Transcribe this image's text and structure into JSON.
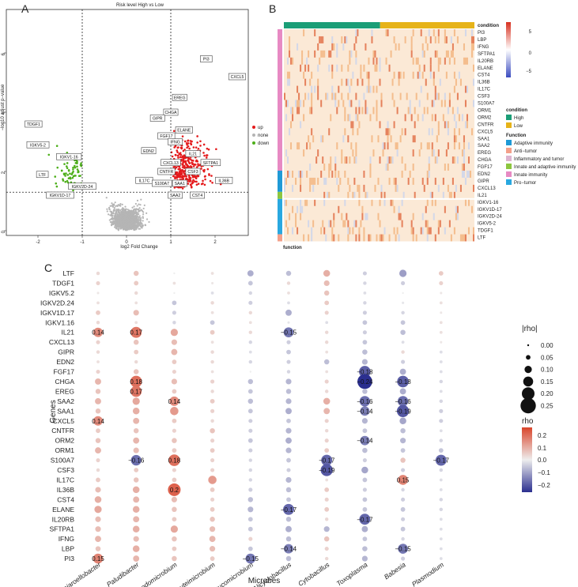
{
  "chart_data": [
    {
      "panel": "A",
      "type": "scatter",
      "title": "Risk level High vs Low",
      "xlabel": "log2 Fold Change",
      "ylabel": "−log10 adjust p−value",
      "xticks": [
        "-2",
        "-1",
        "0",
        "1",
        "2"
      ],
      "yticks": [
        "0",
        "2",
        "4",
        "6"
      ],
      "xlim": [
        -2.7,
        2.8
      ],
      "ylim": [
        0,
        7
      ],
      "fc_threshold": [
        -1,
        1
      ],
      "p_threshold": 1.3,
      "legend": [
        {
          "name": "up",
          "color": "#e41a1c"
        },
        {
          "name": "none",
          "color": "#b5b5b5"
        },
        {
          "name": "down",
          "color": "#4daf1a"
        }
      ],
      "labeled_points": [
        {
          "name": "PI3",
          "x": 1.8,
          "y": 5.8
        },
        {
          "name": "CXCL5",
          "x": 2.5,
          "y": 5.2
        },
        {
          "name": "EREG",
          "x": 1.2,
          "y": 4.5
        },
        {
          "name": "CHGA",
          "x": 1.0,
          "y": 4.0
        },
        {
          "name": "GIPR",
          "x": 0.7,
          "y": 3.8
        },
        {
          "name": "ELANE",
          "x": 1.3,
          "y": 3.4
        },
        {
          "name": "FGF17",
          "x": 0.9,
          "y": 3.2
        },
        {
          "name": "IFNG",
          "x": 1.1,
          "y": 3.0
        },
        {
          "name": "EDN2",
          "x": 0.5,
          "y": 2.7
        },
        {
          "name": "IL21",
          "x": 1.5,
          "y": 2.6
        },
        {
          "name": "CXCL13",
          "x": 1.0,
          "y": 2.3
        },
        {
          "name": "SFTPA1",
          "x": 1.9,
          "y": 2.3
        },
        {
          "name": "CNTFR",
          "x": 0.9,
          "y": 2.0
        },
        {
          "name": "CSF3",
          "x": 1.5,
          "y": 2.0
        },
        {
          "name": "IL17C",
          "x": 0.4,
          "y": 1.7
        },
        {
          "name": "S100A7",
          "x": 0.8,
          "y": 1.6
        },
        {
          "name": "SAA1",
          "x": 1.2,
          "y": 1.6
        },
        {
          "name": "IL36B",
          "x": 2.2,
          "y": 1.7
        },
        {
          "name": "SAA2",
          "x": 1.1,
          "y": 1.2
        },
        {
          "name": "CST4",
          "x": 1.6,
          "y": 1.2
        },
        {
          "name": "TDGF1",
          "x": -2.1,
          "y": 3.6
        },
        {
          "name": "IGKV5-2",
          "x": -2.0,
          "y": 2.9
        },
        {
          "name": "IGKV1-16",
          "x": -1.3,
          "y": 2.5
        },
        {
          "name": "LTF",
          "x": -1.9,
          "y": 1.9
        },
        {
          "name": "IGKV2D-24",
          "x": -1.0,
          "y": 1.5
        },
        {
          "name": "IGKV1D-17",
          "x": -1.5,
          "y": 1.2
        }
      ]
    },
    {
      "panel": "B",
      "type": "heatmap",
      "rows": [
        "condition",
        "PI3",
        "LBP",
        "IFNG",
        "SFTPA1",
        "IL20RB",
        "ELANE",
        "CST4",
        "IL36B",
        "IL17C",
        "CSF3",
        "S100A7",
        "ORM1",
        "ORM2",
        "CNTFR",
        "CXCL5",
        "SAA1",
        "SAA2",
        "EREG",
        "CHGA",
        "FGF17",
        "EDN2",
        "GIPR",
        "CXCL13",
        "IL21",
        "IGKV1-16",
        "IGKV1D-17",
        "IGKV2D-24",
        "IGKV5-2",
        "TDGF1",
        "LTF"
      ],
      "bottom_label": "function",
      "colorbar": {
        "ticks": [
          "5",
          "0",
          "−5"
        ],
        "low": "#3b4cc0",
        "mid": "#ffffff",
        "high": "#d7301f"
      },
      "condition_legend": {
        "title": "condition",
        "items": [
          {
            "name": "High",
            "color": "#1b9e77"
          },
          {
            "name": "Low",
            "color": "#e6b319"
          }
        ]
      },
      "function_legend": {
        "title": "Function",
        "items": [
          {
            "name": "Adaptive immunity",
            "color": "#1f9ad6"
          },
          {
            "name": "Anti−tumor",
            "color": "#f4a08a"
          },
          {
            "name": "Inflammatory and tumor",
            "color": "#ddb3cf"
          },
          {
            "name": "Innate and adaptive immunity",
            "color": "#8dc63f"
          },
          {
            "name": "Innate immunity",
            "color": "#e78ac3"
          },
          {
            "name": "Pro−tumor",
            "color": "#29a8e0"
          }
        ]
      }
    },
    {
      "panel": "C",
      "type": "scatter",
      "xlabel": "Microbes",
      "ylabel": "Genes",
      "microbes": [
        "Pajaroellobacter",
        "Paludibacter",
        "Rhodomicrobium",
        "Luteimicrobium",
        "Verrucomicrobium",
        "Alicyclobacillus",
        "Cytobacillus",
        "Toxoplasma",
        "Babesia",
        "Plasmodium"
      ],
      "genes": [
        "LTF",
        "TDGF1",
        "IGKV5.2",
        "IGKV2D.24",
        "IGKV1D.17",
        "IGKV1.16",
        "IL21",
        "CXCL13",
        "GIPR",
        "EDN2",
        "FGF17",
        "CHGA",
        "EREG",
        "SAA2",
        "SAA1",
        "CXCL5",
        "CNTFR",
        "ORM2",
        "ORM1",
        "S100A7",
        "CSF3",
        "IL17C",
        "IL36B",
        "CST4",
        "ELANE",
        "IL20RB",
        "SFTPA1",
        "IFNG",
        "LBP",
        "PI3"
      ],
      "size_legend": {
        "title": "|rho|",
        "values": [
          "0.00",
          "0.05",
          "0.10",
          "0.15",
          "0.20",
          "0.25"
        ]
      },
      "color_legend": {
        "title": "rho",
        "ticks": [
          "0.2",
          "0.1",
          "0.0",
          "−0.1",
          "−0.2"
        ]
      },
      "rho": [
        [
          0.03,
          0.06,
          0.0,
          0.02,
          -0.08,
          -0.06,
          0.09,
          -0.04,
          -0.1,
          0.05
        ],
        [
          0.04,
          0.05,
          0.02,
          0.01,
          -0.05,
          0.03,
          0.07,
          -0.03,
          -0.04,
          0.04
        ],
        [
          0.01,
          0.03,
          0.0,
          -0.02,
          -0.03,
          0.02,
          0.06,
          -0.02,
          0.0,
          0.01
        ],
        [
          0.02,
          0.02,
          -0.05,
          0.03,
          -0.04,
          -0.02,
          0.05,
          -0.03,
          -0.01,
          0.02
        ],
        [
          0.05,
          0.07,
          -0.04,
          0.02,
          0.03,
          -0.08,
          0.04,
          -0.04,
          -0.03,
          0.01
        ],
        [
          0.03,
          0.02,
          -0.03,
          -0.05,
          0.02,
          -0.01,
          -0.02,
          -0.05,
          -0.05,
          0.02
        ],
        [
          0.14,
          0.17,
          0.1,
          0.05,
          0.03,
          -0.15,
          0.03,
          -0.04,
          -0.06,
          0.02
        ],
        [
          0.04,
          0.06,
          0.07,
          0.02,
          -0.03,
          -0.04,
          0.03,
          -0.05,
          -0.02,
          0.01
        ],
        [
          0.03,
          0.05,
          0.08,
          0.03,
          -0.02,
          -0.05,
          0.02,
          -0.06,
          0.03,
          -0.02
        ],
        [
          0.02,
          0.03,
          0.05,
          0.03,
          -0.03,
          -0.04,
          -0.06,
          -0.07,
          -0.04,
          -0.02
        ],
        [
          0.04,
          0.06,
          0.04,
          0.02,
          0.0,
          -0.03,
          0.02,
          -0.18,
          -0.08,
          -0.02
        ],
        [
          0.08,
          0.18,
          0.07,
          0.04,
          -0.06,
          -0.07,
          0.04,
          -0.24,
          -0.18,
          -0.03
        ],
        [
          0.06,
          0.17,
          0.05,
          0.03,
          -0.05,
          -0.06,
          0.03,
          -0.06,
          -0.08,
          -0.02
        ],
        [
          0.08,
          0.1,
          0.14,
          0.05,
          -0.06,
          -0.07,
          0.09,
          -0.16,
          -0.16,
          -0.03
        ],
        [
          0.06,
          0.09,
          0.12,
          0.04,
          -0.05,
          -0.08,
          0.08,
          -0.14,
          -0.19,
          -0.04
        ],
        [
          0.14,
          0.08,
          0.05,
          0.03,
          -0.04,
          -0.05,
          0.04,
          -0.07,
          -0.09,
          -0.04
        ],
        [
          0.05,
          0.06,
          0.04,
          0.06,
          -0.04,
          -0.07,
          0.03,
          -0.05,
          -0.06,
          -0.02
        ],
        [
          0.06,
          0.08,
          0.06,
          0.04,
          -0.05,
          -0.08,
          0.04,
          -0.14,
          -0.07,
          -0.03
        ],
        [
          0.08,
          0.07,
          0.05,
          0.05,
          -0.04,
          -0.07,
          0.05,
          -0.06,
          -0.05,
          -0.05
        ],
        [
          0.04,
          -0.16,
          0.18,
          0.04,
          -0.03,
          -0.05,
          -0.17,
          -0.04,
          0.06,
          -0.17
        ],
        [
          0.03,
          0.05,
          0.04,
          0.04,
          -0.03,
          -0.04,
          -0.19,
          -0.09,
          -0.04,
          -0.03
        ],
        [
          0.05,
          0.06,
          0.05,
          0.12,
          -0.03,
          -0.07,
          0.02,
          -0.05,
          0.15,
          -0.02
        ],
        [
          0.07,
          0.09,
          0.2,
          0.05,
          -0.04,
          -0.06,
          0.05,
          -0.04,
          -0.03,
          -0.02
        ],
        [
          0.09,
          0.08,
          0.07,
          0.04,
          -0.06,
          -0.05,
          0.04,
          -0.05,
          -0.04,
          -0.03
        ],
        [
          0.1,
          0.09,
          0.06,
          0.05,
          -0.07,
          -0.17,
          0.05,
          -0.05,
          -0.05,
          -0.03
        ],
        [
          0.07,
          0.08,
          0.05,
          0.06,
          -0.05,
          -0.06,
          0.03,
          -0.17,
          -0.04,
          -0.02
        ],
        [
          0.07,
          0.09,
          0.1,
          0.07,
          -0.05,
          -0.08,
          -0.07,
          -0.08,
          -0.05,
          -0.02
        ],
        [
          0.08,
          0.07,
          0.06,
          0.08,
          0.04,
          -0.06,
          0.06,
          -0.05,
          -0.03,
          -0.02
        ],
        [
          0.06,
          0.09,
          0.05,
          0.07,
          -0.05,
          -0.14,
          0.04,
          -0.06,
          -0.15,
          -0.02
        ],
        [
          0.15,
          0.08,
          0.06,
          0.05,
          -0.15,
          -0.06,
          0.03,
          -0.07,
          -0.04,
          -0.02
        ]
      ],
      "rho_labels": [
        {
          "gene": "IL21",
          "microbe": "Pajaroellobacter",
          "text": "0.14"
        },
        {
          "gene": "IL21",
          "microbe": "Paludibacter",
          "text": "0.17"
        },
        {
          "gene": "IL21",
          "microbe": "Alicyclobacillus",
          "text": "−0.15"
        },
        {
          "gene": "FGF17",
          "microbe": "Toxoplasma",
          "text": "−0.18"
        },
        {
          "gene": "CHGA",
          "microbe": "Paludibacter",
          "text": "0.18"
        },
        {
          "gene": "CHGA",
          "microbe": "Toxoplasma",
          "text": "−0.24"
        },
        {
          "gene": "CHGA",
          "microbe": "Babesia",
          "text": "−0.18"
        },
        {
          "gene": "EREG",
          "microbe": "Paludibacter",
          "text": "0.17"
        },
        {
          "gene": "SAA2",
          "microbe": "Rhodomicrobium",
          "text": "0.14"
        },
        {
          "gene": "SAA2",
          "microbe": "Toxoplasma",
          "text": "−0.16"
        },
        {
          "gene": "SAA2",
          "microbe": "Babesia",
          "text": "−0.16"
        },
        {
          "gene": "SAA1",
          "microbe": "Toxoplasma",
          "text": "−0.14"
        },
        {
          "gene": "SAA1",
          "microbe": "Babesia",
          "text": "−0.19"
        },
        {
          "gene": "CXCL5",
          "microbe": "Pajaroellobacter",
          "text": "0.14"
        },
        {
          "gene": "ORM2",
          "microbe": "Toxoplasma",
          "text": "−0.14"
        },
        {
          "gene": "S100A7",
          "microbe": "Paludibacter",
          "text": "−0.16"
        },
        {
          "gene": "S100A7",
          "microbe": "Rhodomicrobium",
          "text": "0.18"
        },
        {
          "gene": "S100A7",
          "microbe": "Cytobacillus",
          "text": "−0.17"
        },
        {
          "gene": "S100A7",
          "microbe": "Plasmodium",
          "text": "−0.17"
        },
        {
          "gene": "CSF3",
          "microbe": "Cytobacillus",
          "text": "−0.19"
        },
        {
          "gene": "IL17C",
          "microbe": "Babesia",
          "text": "0.15"
        },
        {
          "gene": "IL36B",
          "microbe": "Rhodomicrobium",
          "text": "0.2"
        },
        {
          "gene": "ELANE",
          "microbe": "Alicyclobacillus",
          "text": "−0.17"
        },
        {
          "gene": "IL20RB",
          "microbe": "Toxoplasma",
          "text": "−0.17"
        },
        {
          "gene": "LBP",
          "microbe": "Alicyclobacillus",
          "text": "−0.14"
        },
        {
          "gene": "LBP",
          "microbe": "Babesia",
          "text": "−0.15"
        },
        {
          "gene": "PI3",
          "microbe": "Pajaroellobacter",
          "text": "0.15"
        },
        {
          "gene": "PI3",
          "microbe": "Verrucomicrobium",
          "text": "−0.15"
        }
      ]
    }
  ],
  "panel_labels": {
    "a": "A",
    "b": "B",
    "c": "C"
  },
  "colors": {
    "up": "#e41a1c",
    "none": "#b5b5b5",
    "down": "#4daf1a",
    "pos": "#e05a3a",
    "neg": "#2b2f8f"
  }
}
